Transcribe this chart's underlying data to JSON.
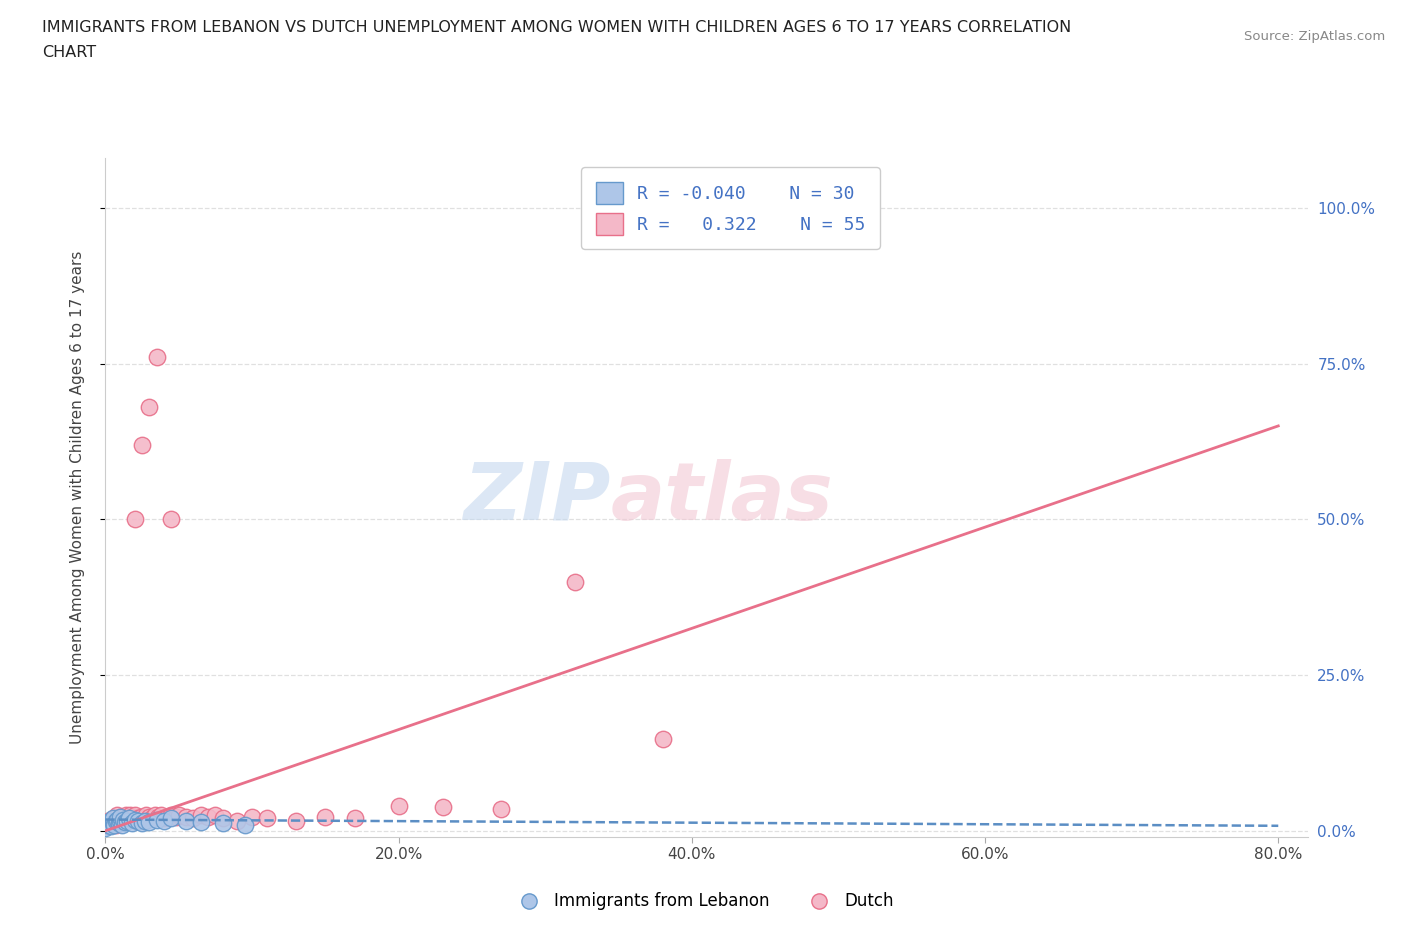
{
  "title_line1": "IMMIGRANTS FROM LEBANON VS DUTCH UNEMPLOYMENT AMONG WOMEN WITH CHILDREN AGES 6 TO 17 YEARS CORRELATION",
  "title_line2": "CHART",
  "source": "Source: ZipAtlas.com",
  "ylabel": "Unemployment Among Women with Children Ages 6 to 17 years",
  "xlim": [
    0.0,
    0.82
  ],
  "ylim": [
    -0.01,
    1.08
  ],
  "xticks": [
    0.0,
    0.2,
    0.4,
    0.6,
    0.8
  ],
  "xticklabels": [
    "0.0%",
    "20.0%",
    "40.0%",
    "60.0%",
    "80.0%"
  ],
  "ytick_positions": [
    0.0,
    0.25,
    0.5,
    0.75,
    1.0
  ],
  "yticklabels_right": [
    "0.0%",
    "25.0%",
    "50.0%",
    "75.0%",
    "100.0%"
  ],
  "color_blue": "#aec6e8",
  "color_blue_edge": "#6699cc",
  "color_blue_line": "#5b8ec4",
  "color_pink": "#f4b8c8",
  "color_pink_edge": "#e8708a",
  "color_pink_line": "#e8708a",
  "color_blue_text": "#4472c4",
  "grid_color": "#e0e0e0",
  "bg_color": "#ffffff",
  "blue_x": [
    0.0,
    0.002,
    0.003,
    0.004,
    0.005,
    0.005,
    0.006,
    0.007,
    0.008,
    0.009,
    0.01,
    0.01,
    0.011,
    0.012,
    0.013,
    0.015,
    0.016,
    0.018,
    0.02,
    0.022,
    0.025,
    0.027,
    0.03,
    0.035,
    0.04,
    0.045,
    0.055,
    0.065,
    0.08,
    0.095
  ],
  "blue_y": [
    0.005,
    0.01,
    0.015,
    0.008,
    0.012,
    0.02,
    0.01,
    0.015,
    0.018,
    0.012,
    0.015,
    0.022,
    0.01,
    0.018,
    0.014,
    0.016,
    0.02,
    0.012,
    0.018,
    0.015,
    0.012,
    0.016,
    0.014,
    0.018,
    0.015,
    0.02,
    0.016,
    0.014,
    0.012,
    0.01
  ],
  "pink_x": [
    0.0,
    0.002,
    0.003,
    0.005,
    0.006,
    0.007,
    0.008,
    0.009,
    0.01,
    0.011,
    0.012,
    0.013,
    0.014,
    0.015,
    0.016,
    0.017,
    0.018,
    0.019,
    0.02,
    0.022,
    0.024,
    0.026,
    0.028,
    0.03,
    0.032,
    0.034,
    0.036,
    0.038,
    0.04,
    0.042,
    0.045,
    0.048,
    0.05,
    0.055,
    0.06,
    0.065,
    0.07,
    0.075,
    0.08,
    0.09,
    0.1,
    0.11,
    0.13,
    0.15,
    0.17,
    0.2,
    0.23,
    0.27,
    0.32,
    0.38,
    0.02,
    0.025,
    0.03,
    0.035,
    0.045
  ],
  "pink_y": [
    0.008,
    0.012,
    0.018,
    0.015,
    0.02,
    0.01,
    0.025,
    0.018,
    0.022,
    0.015,
    0.02,
    0.016,
    0.025,
    0.02,
    0.018,
    0.025,
    0.022,
    0.018,
    0.025,
    0.02,
    0.022,
    0.02,
    0.025,
    0.022,
    0.02,
    0.025,
    0.022,
    0.025,
    0.02,
    0.022,
    0.025,
    0.022,
    0.025,
    0.022,
    0.02,
    0.025,
    0.022,
    0.025,
    0.02,
    0.015,
    0.022,
    0.02,
    0.016,
    0.022,
    0.02,
    0.04,
    0.038,
    0.035,
    0.4,
    0.148,
    0.5,
    0.62,
    0.68,
    0.76,
    0.5
  ],
  "pink_line_x": [
    0.0,
    0.8
  ],
  "pink_line_y": [
    0.0,
    0.65
  ],
  "blue_line_x": [
    0.0,
    0.8
  ],
  "blue_line_y": [
    0.018,
    0.008
  ]
}
